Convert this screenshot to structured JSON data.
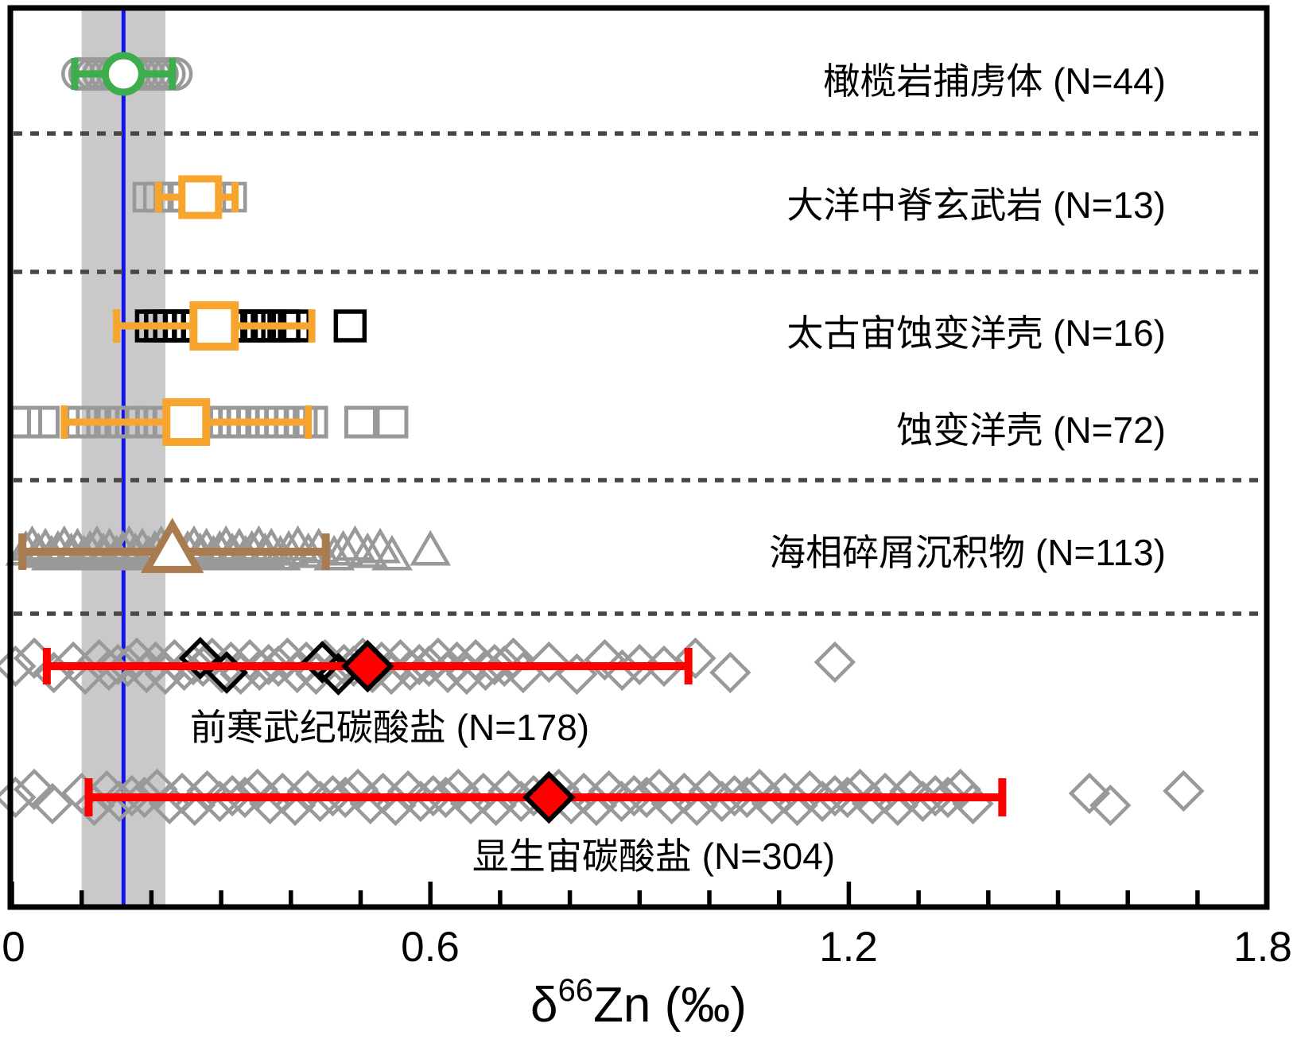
{
  "chart_data": {
    "type": "scatter",
    "title": "",
    "xlabel": "δ66Zn (‰)",
    "xlabel_parts": {
      "prefix": "δ",
      "sup": "66",
      "rest": "Zn (‰)"
    },
    "xlim": [
      0,
      1.8
    ],
    "x_major_ticks": [
      0,
      0.6,
      1.2,
      1.8
    ],
    "x_major_tick_labels": [
      "0",
      "0.6",
      "1.2",
      "1.8"
    ],
    "x_minor_tick_step": 0.1,
    "grid": false,
    "legend": "none",
    "frame_color": "#000000",
    "divider_color": "#474747",
    "reference_line": {
      "value": 0.16,
      "color": "#1212ee"
    },
    "reference_band": {
      "from": 0.1,
      "to": 0.22,
      "color": "#c9c9c9"
    },
    "rows": [
      {
        "id": "peridotite-xenoliths",
        "label": "橄榄岩捕虏体 (N=44)",
        "n": 44,
        "marker": "circle",
        "point_color": "#999999",
        "accent": "#3cae4b",
        "mean_style": "open",
        "mean": 0.16,
        "err": [
          0.09,
          0.23
        ],
        "divider_below": true,
        "points": [
          0.095,
          0.105,
          0.115,
          0.125,
          0.135,
          0.145,
          0.155,
          0.165,
          0.175,
          0.185,
          0.195,
          0.205,
          0.215,
          0.225,
          0.235
        ]
      },
      {
        "id": "mid-ocean-ridge-basalt",
        "label": "大洋中脊玄武岩 (N=13)",
        "n": 13,
        "marker": "square",
        "point_color": "#999999",
        "accent": "#f7a52f",
        "mean_style": "open",
        "mean": 0.27,
        "err": [
          0.21,
          0.32
        ],
        "divider_below": true,
        "points": [
          0.195,
          0.21,
          0.225,
          0.245,
          0.265,
          0.285,
          0.3,
          0.315
        ]
      },
      {
        "id": "archean-altered-oceanic-crust",
        "label": "太古宙蚀变洋壳 (N=16)",
        "n": 16,
        "marker": "square",
        "point_color": "#000000",
        "accent": "#f7a52f",
        "mean_style": "open",
        "mean": 0.29,
        "err": [
          0.15,
          0.43
        ],
        "divider_below": false,
        "points": [
          0.2,
          0.213,
          0.226,
          0.24,
          0.253,
          0.266,
          0.28,
          0.295,
          0.31,
          0.325,
          0.34,
          0.355,
          0.37,
          0.39,
          0.405,
          0.485
        ]
      },
      {
        "id": "altered-oceanic-crust",
        "label": "蚀变洋壳  (N=72)",
        "n": 72,
        "marker": "square",
        "point_color": "#999999",
        "accent": "#f7a52f",
        "mean_style": "open",
        "mean": 0.25,
        "err": [
          0.075,
          0.425
        ],
        "divider_below": true,
        "points": [
          0.02,
          0.045,
          0.1,
          0.115,
          0.13,
          0.145,
          0.16,
          0.172,
          0.185,
          0.2,
          0.212,
          0.225,
          0.24,
          0.252,
          0.265,
          0.278,
          0.29,
          0.305,
          0.32,
          0.332,
          0.345,
          0.358,
          0.372,
          0.385,
          0.4,
          0.415,
          0.43,
          0.5,
          0.545
        ]
      },
      {
        "id": "marine-detrital-sediments",
        "label": "海相碎屑沉积物 (N=113)",
        "n": 113,
        "marker": "triangle",
        "point_color": "#999999",
        "accent": "#a87c4e",
        "mean_style": "open",
        "mean": 0.23,
        "err": [
          0.015,
          0.45
        ],
        "divider_below": true,
        "points": [
          0.02,
          0.029,
          0.038,
          0.048,
          0.057,
          0.066,
          0.075,
          0.085,
          0.094,
          0.103,
          0.112,
          0.122,
          0.131,
          0.14,
          0.15,
          0.159,
          0.168,
          0.177,
          0.187,
          0.196,
          0.205,
          0.214,
          0.224,
          0.233,
          0.242,
          0.252,
          0.261,
          0.27,
          0.279,
          0.289,
          0.298,
          0.307,
          0.316,
          0.326,
          0.335,
          0.344,
          0.354,
          0.363,
          0.372,
          0.385,
          0.397,
          0.41,
          0.425,
          0.44,
          0.462,
          0.475,
          0.492,
          0.51,
          0.528,
          0.545,
          0.6
        ]
      },
      {
        "id": "precambrian-carbonates",
        "label": "前寒武纪碳酸盐 (N=178)",
        "n": 178,
        "marker": "diamond",
        "point_color": "#999999",
        "highlight_color": "#000000",
        "accent": "#ff0000",
        "mean_style": "filled",
        "mean": 0.51,
        "err": [
          0.05,
          0.97
        ],
        "divider_below": false,
        "points": [
          0.005,
          0.032,
          0.06,
          0.088,
          0.105,
          0.125,
          0.139,
          0.152,
          0.166,
          0.179,
          0.193,
          0.206,
          0.22,
          0.233,
          0.247,
          0.26,
          0.274,
          0.287,
          0.301,
          0.314,
          0.328,
          0.341,
          0.355,
          0.368,
          0.382,
          0.395,
          0.409,
          0.422,
          0.436,
          0.449,
          0.463,
          0.476,
          0.49,
          0.503,
          0.517,
          0.53,
          0.544,
          0.557,
          0.571,
          0.584,
          0.598,
          0.611,
          0.625,
          0.638,
          0.652,
          0.665,
          0.679,
          0.692,
          0.706,
          0.719,
          0.733,
          0.77,
          0.81,
          0.85,
          0.875,
          0.9,
          0.935,
          0.98,
          1.03,
          1.18
        ],
        "highlight_points": [
          0.27,
          0.308,
          0.445,
          0.468
        ]
      },
      {
        "id": "phanerozoic-carbonates",
        "label": "显生宙碳酸盐  (N=304)",
        "n": 304,
        "marker": "diamond",
        "point_color": "#999999",
        "accent": "#ff0000",
        "mean_style": "filled",
        "mean": 0.77,
        "err": [
          0.11,
          1.42
        ],
        "divider_below": false,
        "points": [
          0.005,
          0.032,
          0.058,
          0.1,
          0.118,
          0.136,
          0.154,
          0.172,
          0.19,
          0.208,
          0.226,
          0.244,
          0.262,
          0.28,
          0.298,
          0.316,
          0.334,
          0.352,
          0.37,
          0.388,
          0.406,
          0.424,
          0.442,
          0.46,
          0.478,
          0.496,
          0.514,
          0.532,
          0.55,
          0.568,
          0.586,
          0.604,
          0.622,
          0.64,
          0.658,
          0.676,
          0.694,
          0.712,
          0.73,
          0.748,
          0.766,
          0.784,
          0.802,
          0.82,
          0.838,
          0.856,
          0.874,
          0.892,
          0.91,
          0.928,
          0.946,
          0.964,
          0.982,
          1.0,
          1.018,
          1.036,
          1.054,
          1.072,
          1.09,
          1.108,
          1.126,
          1.144,
          1.162,
          1.18,
          1.198,
          1.216,
          1.234,
          1.252,
          1.27,
          1.288,
          1.306,
          1.324,
          1.342,
          1.36,
          1.378,
          1.545,
          1.575,
          1.68
        ]
      }
    ]
  }
}
